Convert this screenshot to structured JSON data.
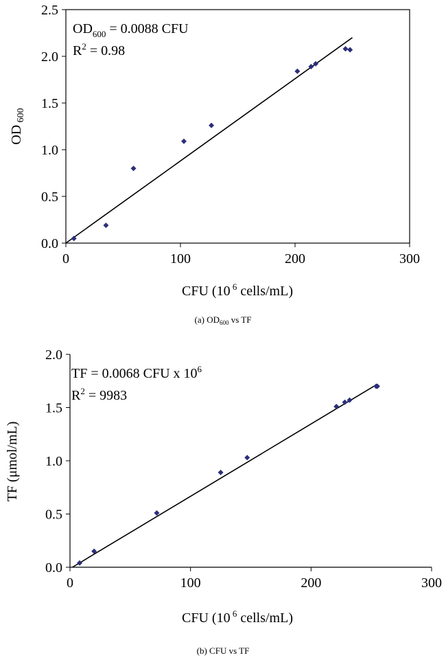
{
  "chart_data": [
    {
      "type": "scatter",
      "xlim": [
        0,
        300
      ],
      "ylim": [
        0,
        2.5
      ],
      "xticks": [
        "0",
        "100",
        "200",
        "300"
      ],
      "yticks": [
        "0.0",
        "0.5",
        "1.0",
        "1.5",
        "2.0",
        "2.5"
      ],
      "xlabel": {
        "main": "CFU (10",
        "sup": " 6",
        "rest": " cells/mL)"
      },
      "ylabel": {
        "main": "OD",
        "sub": " 600"
      },
      "annotation": {
        "eq_main": "OD",
        "eq_sub": "600",
        "eq_rest": " = 0.0088  CFU",
        "r2_main": "R",
        "r2_sup": "2",
        "r2_rest": " = 0.98"
      },
      "caption": {
        "main": "(a) OD",
        "sub": "600",
        "rest": " vs TF"
      },
      "points": [
        {
          "x": 7,
          "y": 0.05
        },
        {
          "x": 35,
          "y": 0.19
        },
        {
          "x": 59,
          "y": 0.8
        },
        {
          "x": 103,
          "y": 1.09
        },
        {
          "x": 127,
          "y": 1.26
        },
        {
          "x": 202,
          "y": 1.84
        },
        {
          "x": 214,
          "y": 1.89
        },
        {
          "x": 218,
          "y": 1.92
        },
        {
          "x": 244,
          "y": 2.08
        },
        {
          "x": 248,
          "y": 2.07
        }
      ],
      "fit": {
        "x": [
          0,
          250
        ],
        "y": [
          0.0,
          2.2
        ]
      },
      "legend": "none"
    },
    {
      "type": "scatter",
      "xlim": [
        0,
        300
      ],
      "ylim": [
        0,
        2.0
      ],
      "xticks": [
        "0",
        "100",
        "200",
        "300"
      ],
      "yticks": [
        "0.0",
        "0.5",
        "1.0",
        "1.5",
        "2.0"
      ],
      "xlabel": {
        "main": "CFU (10",
        "sup": " 6",
        "rest": " cells/mL)"
      },
      "ylabel": {
        "main": "TF (μmol/mL)"
      },
      "annotation": {
        "eq_main": "TF =  0.0068  CFU x  10",
        "eq_sup": "6",
        "r2_main": "R",
        "r2_sup": "2",
        "r2_rest": " = 9983"
      },
      "caption": {
        "main": "(b) CFU vs TF"
      },
      "points": [
        {
          "x": 8,
          "y": 0.04
        },
        {
          "x": 20,
          "y": 0.15
        },
        {
          "x": 72,
          "y": 0.51
        },
        {
          "x": 125,
          "y": 0.89
        },
        {
          "x": 147,
          "y": 1.03
        },
        {
          "x": 221,
          "y": 1.51
        },
        {
          "x": 228,
          "y": 1.55
        },
        {
          "x": 232,
          "y": 1.57
        },
        {
          "x": 254,
          "y": 1.7
        },
        {
          "x": 255,
          "y": 1.7
        }
      ],
      "fit": {
        "x": [
          2,
          255
        ],
        "y": [
          0.0,
          1.72
        ]
      },
      "legend": "none"
    }
  ]
}
